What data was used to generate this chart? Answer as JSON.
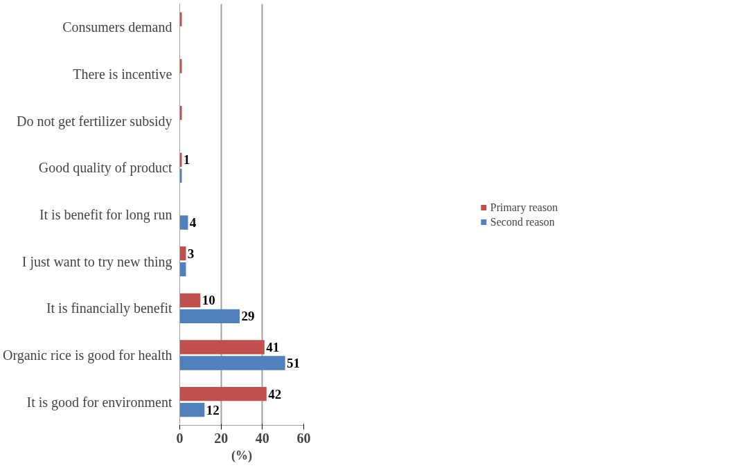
{
  "chart_data": {
    "type": "bar",
    "orientation": "horizontal",
    "xlabel": "(%)",
    "categories": [
      "Consumers demand",
      "There is incentive",
      "Do not get fertilizer subsidy",
      "Good quality of product",
      "It is benefit for long run",
      "I just want to try new thing",
      "It is financially benefit",
      "Organic rice is good for health",
      "It is good for environment"
    ],
    "series": [
      {
        "name": "Primary reason",
        "color": "#c0504d",
        "values": [
          1,
          1,
          1,
          1,
          0,
          3,
          10,
          41,
          42
        ],
        "value_labels": [
          null,
          null,
          null,
          "1",
          null,
          "3",
          "10",
          "41",
          "42"
        ]
      },
      {
        "name": "Second reason",
        "color": "#4f81bd",
        "values": [
          0,
          0,
          0,
          1,
          4,
          3,
          29,
          51,
          12
        ],
        "value_labels": [
          null,
          null,
          null,
          null,
          "4",
          null,
          "29",
          "51",
          "12"
        ]
      }
    ],
    "xlim": [
      0,
      60
    ],
    "xticks": [
      0,
      20,
      40,
      60
    ],
    "grid": "x",
    "legend": "right"
  }
}
